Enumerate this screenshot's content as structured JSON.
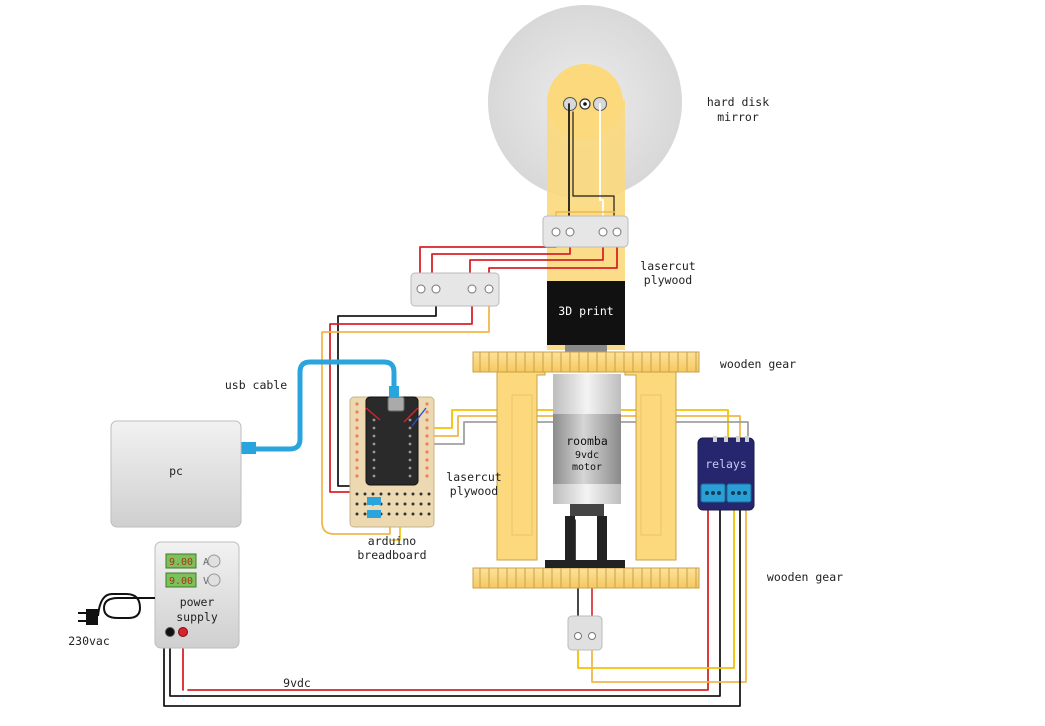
{
  "labels": {
    "hard_disk_line1": "hard disk",
    "hard_disk_line2": "mirror",
    "lasercut_top_line1": "lasercut",
    "lasercut_top_line2": "plywood",
    "print_3d": "3D print",
    "wooden_gear_top": "wooden gear",
    "usb_cable": "usb cable",
    "pc": "pc",
    "roomba_line1": "roomba",
    "roomba_line2": "9vdc",
    "roomba_line3": "motor",
    "relays": "relays",
    "lasercut_mid_line1": "lasercut",
    "lasercut_mid_line2": "plywood",
    "arduino_line1": "arduino",
    "arduino_line2": "breadboard",
    "wooden_gear_bottom": "wooden gear",
    "psu_display_a": "9.00",
    "psu_unit_a": "A",
    "psu_display_v": "9.00",
    "psu_unit_v": "V",
    "psu_line1": "power",
    "psu_line2": "supply",
    "mains": "230vac",
    "supply_voltage": "9vdc"
  },
  "colors": {
    "wire_red": "#d8232a",
    "wire_black": "#1a1a1a",
    "wire_yellow": "#f2c200",
    "wire_orange": "#f0b84a",
    "wire_white": "#ffffff",
    "wire_grey": "#a0a0a0",
    "usb_blue": "#2aa4dd",
    "wood": "#fbd97c",
    "wood_edge": "#c9a04a",
    "relay_board": "#26266e",
    "disk_grey": "#dedede",
    "print_black": "#111111"
  }
}
